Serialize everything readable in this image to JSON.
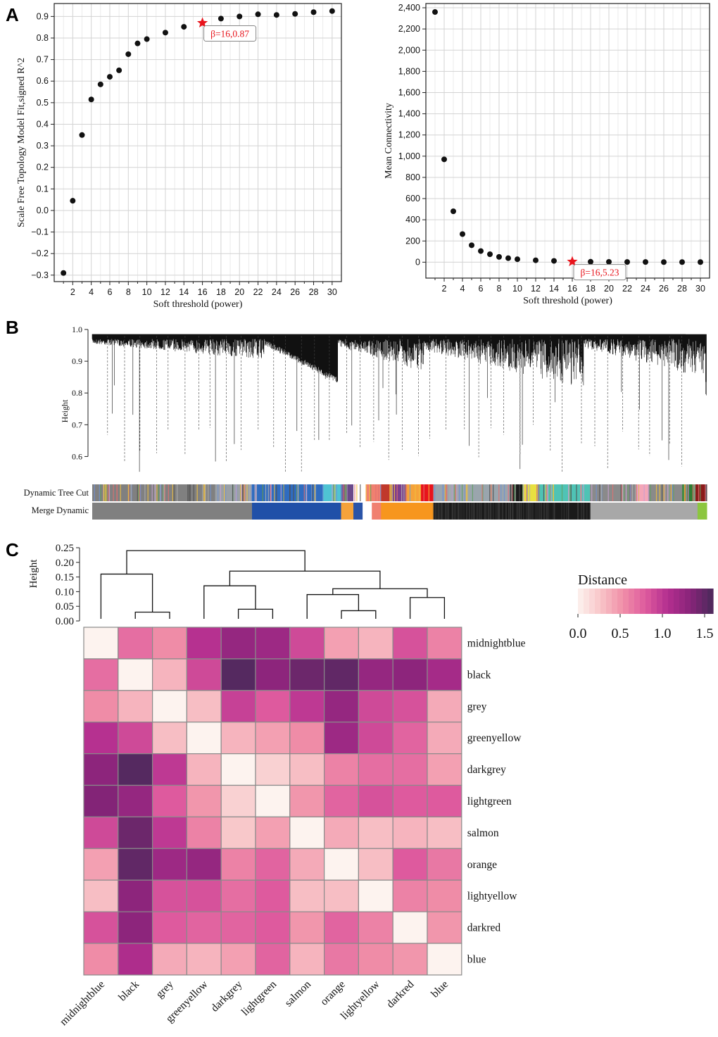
{
  "chart_data": [
    {
      "panel": "A",
      "type": "scatter",
      "xlabel": "Soft threshold (power)",
      "ylabel": "Scale Free Topology Model Fit,signed R^2",
      "xlim": [
        0,
        31
      ],
      "ylim": [
        -0.33,
        0.96
      ],
      "x_ticks": [
        2,
        4,
        6,
        8,
        10,
        12,
        14,
        16,
        18,
        20,
        22,
        24,
        26,
        28,
        30
      ],
      "y_ticks": [
        -0.3,
        -0.2,
        -0.1,
        0.0,
        0.1,
        0.2,
        0.3,
        0.4,
        0.5,
        0.6,
        0.7,
        0.8,
        0.9
      ],
      "y_tick_labels": [
        "−0.3",
        "−0.2",
        "−0.1",
        "0.0",
        "0.1",
        "0.2",
        "0.3",
        "0.4",
        "0.5",
        "0.6",
        "0.7",
        "0.8",
        "0.9"
      ],
      "x": [
        1,
        2,
        3,
        4,
        5,
        6,
        7,
        8,
        9,
        10,
        12,
        14,
        16,
        18,
        20,
        22,
        24,
        26,
        28,
        30
      ],
      "y": [
        -0.29,
        0.045,
        0.35,
        0.515,
        0.585,
        0.62,
        0.65,
        0.725,
        0.775,
        0.795,
        0.825,
        0.852,
        0.87,
        0.89,
        0.9,
        0.91,
        0.907,
        0.912,
        0.92,
        0.925
      ],
      "highlight": {
        "x": 16,
        "y": 0.87,
        "label": "β=16,0.87",
        "color": "#e8141c"
      }
    },
    {
      "panel": "A-right",
      "type": "scatter",
      "xlabel": "Soft threshold (power)",
      "ylabel": "Mean Connectivity",
      "xlim": [
        0,
        31
      ],
      "ylim": [
        -150,
        2440
      ],
      "x_ticks": [
        2,
        4,
        6,
        8,
        10,
        12,
        14,
        16,
        18,
        20,
        22,
        24,
        26,
        28,
        30
      ],
      "y_ticks": [
        0,
        200,
        400,
        600,
        800,
        1000,
        1200,
        1400,
        1600,
        1800,
        2000,
        2200,
        2400
      ],
      "y_tick_labels": [
        "0",
        "200",
        "400",
        "600",
        "800",
        "1,000",
        "1,200",
        "1,400",
        "1,600",
        "1,800",
        "2,000",
        "2,200",
        "2,400"
      ],
      "x": [
        1,
        2,
        3,
        4,
        5,
        6,
        7,
        8,
        9,
        10,
        12,
        14,
        16,
        18,
        20,
        22,
        24,
        26,
        28,
        30
      ],
      "y": [
        2360,
        970,
        480,
        265,
        160,
        105,
        75,
        50,
        38,
        28,
        18,
        12,
        5.23,
        4,
        3,
        2,
        2,
        1,
        1,
        1
      ],
      "highlight": {
        "x": 16,
        "y": 5.23,
        "label": "β=16,5.23",
        "color": "#e8141c"
      }
    },
    {
      "panel": "B",
      "type": "dendrogram",
      "ylabel": "Height",
      "ylim": [
        0.53,
        1.0
      ],
      "y_ticks": [
        0.6,
        0.7,
        0.8,
        0.9,
        1.0
      ],
      "y_tick_labels": [
        "0.6",
        "0.7",
        "0.8",
        "0.9",
        "1.0"
      ],
      "row_labels": [
        "Dynamic Tree Cut",
        "Merge Dynamic"
      ],
      "merge_segments": [
        {
          "color": "#808080",
          "from": 0.0,
          "to": 0.26
        },
        {
          "color": "#2050a8",
          "from": 0.26,
          "to": 0.405
        },
        {
          "color": "#f5a23a",
          "from": 0.405,
          "to": 0.425
        },
        {
          "color": "#2a54a8",
          "from": 0.425,
          "to": 0.44
        },
        {
          "color": "#ffffff",
          "from": 0.44,
          "to": 0.455
        },
        {
          "color": "#f08070",
          "from": 0.455,
          "to": 0.47
        },
        {
          "color": "#f7961e",
          "from": 0.47,
          "to": 0.555
        },
        {
          "color": "#1a1a1a",
          "from": 0.555,
          "to": 0.81
        },
        {
          "color": "#a8a8a8",
          "from": 0.81,
          "to": 0.985
        },
        {
          "color": "#8cc63f",
          "from": 0.985,
          "to": 1.0
        }
      ],
      "dynamic_segments": [
        {
          "color": "#808080",
          "from": 0.0,
          "to": 0.2
        },
        {
          "color": "#9aa0a6",
          "from": 0.2,
          "to": 0.26
        },
        {
          "color": "#2f6cc0",
          "from": 0.26,
          "to": 0.375
        },
        {
          "color": "#4fc3d3",
          "from": 0.375,
          "to": 0.405
        },
        {
          "color": "#6a4a8a",
          "from": 0.405,
          "to": 0.425
        },
        {
          "color": "#ffffff",
          "from": 0.425,
          "to": 0.445
        },
        {
          "color": "#f08070",
          "from": 0.445,
          "to": 0.47
        },
        {
          "color": "#c0392b",
          "from": 0.47,
          "to": 0.485
        },
        {
          "color": "#7b3f8c",
          "from": 0.485,
          "to": 0.51
        },
        {
          "color": "#f5a23a",
          "from": 0.51,
          "to": 0.535
        },
        {
          "color": "#e8141c",
          "from": 0.535,
          "to": 0.555
        },
        {
          "color": "#9aa5ad",
          "from": 0.555,
          "to": 0.68
        },
        {
          "color": "#1a1a1a",
          "from": 0.68,
          "to": 0.7
        },
        {
          "color": "#e8e040",
          "from": 0.7,
          "to": 0.725
        },
        {
          "color": "#4fc3b5",
          "from": 0.725,
          "to": 0.81
        },
        {
          "color": "#8a8a8a",
          "from": 0.81,
          "to": 0.885
        },
        {
          "color": "#f4a6b8",
          "from": 0.885,
          "to": 0.905
        },
        {
          "color": "#8a8a8a",
          "from": 0.905,
          "to": 0.96
        },
        {
          "color": "#2e7d32",
          "from": 0.96,
          "to": 0.98
        },
        {
          "color": "#8b1a1a",
          "from": 0.98,
          "to": 1.0
        }
      ]
    },
    {
      "panel": "C",
      "type": "heatmap",
      "labels": [
        "midnightblue",
        "black",
        "grey",
        "greenyellow",
        "darkgrey",
        "lightgreen",
        "salmon",
        "orange",
        "lightyellow",
        "darkred",
        "blue"
      ],
      "values": [
        [
          0.0,
          0.7,
          0.55,
          1.05,
          1.25,
          1.2,
          0.9,
          0.45,
          0.35,
          0.85,
          0.6
        ],
        [
          0.7,
          0.0,
          0.35,
          0.9,
          1.55,
          1.3,
          1.45,
          1.5,
          1.25,
          1.3,
          1.15
        ],
        [
          0.55,
          0.35,
          0.0,
          0.3,
          0.95,
          0.8,
          1.0,
          1.25,
          0.9,
          0.85,
          0.4
        ],
        [
          1.05,
          0.9,
          0.3,
          0.0,
          0.35,
          0.45,
          0.55,
          1.2,
          0.9,
          0.75,
          0.4
        ],
        [
          1.3,
          1.55,
          1.0,
          0.35,
          0.0,
          0.2,
          0.3,
          0.6,
          0.7,
          0.7,
          0.45
        ],
        [
          1.35,
          1.25,
          0.8,
          0.5,
          0.2,
          0.0,
          0.5,
          0.75,
          0.85,
          0.8,
          0.8
        ],
        [
          0.9,
          1.45,
          1.0,
          0.6,
          0.25,
          0.45,
          0.0,
          0.4,
          0.3,
          0.35,
          0.3
        ],
        [
          0.45,
          1.5,
          1.2,
          1.25,
          0.6,
          0.75,
          0.4,
          0.0,
          0.3,
          0.8,
          0.65
        ],
        [
          0.3,
          1.3,
          0.85,
          0.85,
          0.7,
          0.8,
          0.3,
          0.3,
          0.0,
          0.6,
          0.55
        ],
        [
          0.85,
          1.3,
          0.8,
          0.75,
          0.75,
          0.8,
          0.5,
          0.75,
          0.6,
          0.0,
          0.5
        ],
        [
          0.55,
          1.1,
          0.4,
          0.35,
          0.45,
          0.75,
          0.35,
          0.65,
          0.55,
          0.5,
          0.0
        ]
      ],
      "dendrogram_ylabel": "Height",
      "dendrogram_ylim": [
        0,
        0.25
      ],
      "dendrogram_ticks": [
        0.0,
        0.05,
        0.1,
        0.15,
        0.2,
        0.25
      ],
      "dendrogram_tick_labels": [
        "0.00",
        "0.05",
        "0.10",
        "0.15",
        "0.20",
        "0.25"
      ],
      "dendrogram_merges": [
        {
          "left": 1,
          "right": 2,
          "height": 0.03
        },
        {
          "left": 0,
          "right": "c1",
          "height": 0.16
        },
        {
          "left": 4,
          "right": 5,
          "height": 0.04
        },
        {
          "left": 3,
          "right": "c3",
          "height": 0.12
        },
        {
          "left": 7,
          "right": 8,
          "height": 0.035
        },
        {
          "left": 6,
          "right": "c5",
          "height": 0.09
        },
        {
          "left": 9,
          "right": 10,
          "height": 0.08
        },
        {
          "left": "c6",
          "right": "c7",
          "height": 0.11
        },
        {
          "left": "c4",
          "right": "c8",
          "height": 0.17
        },
        {
          "left": "c2",
          "right": "c9",
          "height": 0.24
        }
      ],
      "legend": {
        "title": "Distance",
        "ticks": [
          0.0,
          0.5,
          1.0,
          1.5
        ],
        "tick_labels": [
          "0.0",
          "0.5",
          "1.0",
          "1.5"
        ],
        "range": [
          0,
          1.6
        ]
      },
      "colormap": [
        "#fdf3ef",
        "#f8c5c8",
        "#f08fa8",
        "#de5a9e",
        "#b32e8f",
        "#872479",
        "#4a2a5a"
      ]
    }
  ],
  "panel_letters": {
    "a": "A",
    "b": "B",
    "c": "C"
  }
}
